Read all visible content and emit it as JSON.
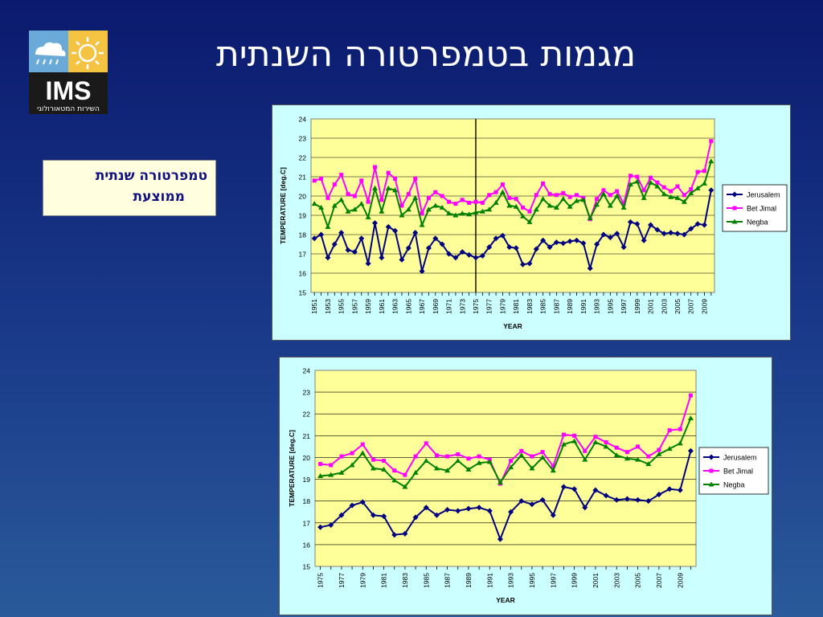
{
  "slide": {
    "title": "מגמות בטמפרטורה השנתית",
    "caption_line1": "טמפרטורה שנתית",
    "caption_line2": "ממוצעת"
  },
  "logo": {
    "text": "IMS",
    "subtext": "השירות המטאורולוגי",
    "icons": [
      "rain-cloud-icon",
      "sun-icon"
    ],
    "colors": {
      "cloud_bg": "#6aaad8",
      "sun_bg": "#f5c342",
      "text_bg": "#1a1a1a"
    }
  },
  "colors": {
    "plot_bg": "#ffff99",
    "panel_bg": "#ccffff",
    "jerusalem": "#000080",
    "bet_jimal": "#ff00ff",
    "negba": "#008000"
  },
  "chart_data": [
    {
      "type": "line",
      "ylabel": "TEMPERATURE   [deg.C]",
      "xlabel": "YEAR",
      "ylim": [
        15,
        24
      ],
      "yticks": [
        15,
        16,
        17,
        18,
        19,
        20,
        21,
        22,
        23,
        24
      ],
      "xticks": [
        1951,
        1953,
        1955,
        1957,
        1959,
        1961,
        1963,
        1965,
        1967,
        1969,
        1971,
        1973,
        1975,
        1977,
        1979,
        1981,
        1983,
        1985,
        1987,
        1989,
        1991,
        1993,
        1995,
        1997,
        1999,
        2001,
        2003,
        2005,
        2007,
        2009
      ],
      "x": [
        1951,
        1952,
        1953,
        1954,
        1955,
        1956,
        1957,
        1958,
        1959,
        1960,
        1961,
        1962,
        1963,
        1964,
        1965,
        1966,
        1967,
        1968,
        1969,
        1970,
        1971,
        1972,
        1973,
        1974,
        1975,
        1976,
        1977,
        1978,
        1979,
        1980,
        1981,
        1982,
        1983,
        1984,
        1985,
        1986,
        1987,
        1988,
        1989,
        1990,
        1991,
        1992,
        1993,
        1994,
        1995,
        1996,
        1997,
        1998,
        1999,
        2000,
        2001,
        2002,
        2003,
        2004,
        2005,
        2006,
        2007,
        2008,
        2009,
        2010
      ],
      "vline": 1975,
      "grid": true,
      "legend": "right",
      "series": [
        {
          "name": "Jerusalem",
          "color": "#000080",
          "marker": "diamond",
          "values": [
            17.8,
            18.0,
            16.8,
            17.5,
            18.1,
            17.2,
            17.1,
            17.8,
            16.5,
            18.6,
            16.8,
            18.4,
            18.2,
            16.7,
            17.3,
            18.1,
            16.1,
            17.3,
            17.8,
            17.5,
            17.0,
            16.8,
            17.1,
            16.95,
            16.8,
            16.9,
            17.35,
            17.8,
            17.95,
            17.35,
            17.3,
            16.45,
            16.5,
            17.25,
            17.7,
            17.35,
            17.6,
            17.55,
            17.65,
            17.7,
            17.55,
            16.25,
            17.5,
            18.0,
            17.85,
            18.05,
            17.35,
            18.65,
            18.55,
            17.7,
            18.5,
            18.25,
            18.05,
            18.1,
            18.05,
            18.0,
            18.3,
            18.55,
            18.5,
            20.3
          ]
        },
        {
          "name": "Bet Jimal",
          "color": "#ff00ff",
          "marker": "square",
          "values": [
            20.8,
            20.9,
            19.9,
            20.6,
            21.1,
            20.1,
            20.0,
            20.8,
            19.7,
            21.5,
            19.8,
            21.2,
            20.9,
            19.5,
            20.1,
            20.9,
            19.1,
            19.9,
            20.2,
            20.0,
            19.7,
            19.6,
            19.8,
            19.65,
            19.7,
            19.65,
            20.05,
            20.2,
            20.6,
            19.9,
            19.85,
            19.4,
            19.2,
            20.05,
            20.65,
            20.1,
            20.05,
            20.15,
            19.95,
            20.05,
            19.9,
            18.8,
            19.85,
            20.3,
            20.05,
            20.25,
            19.6,
            21.05,
            21.0,
            20.3,
            20.95,
            20.7,
            20.45,
            20.25,
            20.5,
            20.05,
            20.35,
            21.25,
            21.3,
            22.85
          ]
        },
        {
          "name": "Negba",
          "color": "#008000",
          "marker": "triangle",
          "values": [
            19.6,
            19.4,
            18.4,
            19.5,
            19.8,
            19.2,
            19.3,
            19.6,
            18.9,
            20.4,
            19.2,
            20.4,
            20.3,
            19.0,
            19.3,
            19.9,
            18.5,
            19.3,
            19.5,
            19.4,
            19.1,
            19.0,
            19.1,
            19.05,
            19.15,
            19.2,
            19.3,
            19.65,
            20.2,
            19.5,
            19.45,
            18.95,
            18.65,
            19.3,
            19.85,
            19.5,
            19.4,
            19.85,
            19.45,
            19.75,
            19.8,
            18.85,
            19.55,
            20.1,
            19.5,
            20.0,
            19.4,
            20.6,
            20.75,
            19.9,
            20.7,
            20.5,
            20.1,
            19.95,
            19.9,
            19.7,
            20.15,
            20.4,
            20.65,
            21.8
          ]
        }
      ]
    },
    {
      "type": "line",
      "ylabel": "TEMPERATURE   [deg.C]",
      "xlabel": "YEAR",
      "ylim": [
        15,
        24
      ],
      "yticks": [
        15,
        16,
        17,
        18,
        19,
        20,
        21,
        22,
        23,
        24
      ],
      "xticks": [
        1975,
        1977,
        1979,
        1981,
        1983,
        1985,
        1987,
        1989,
        1991,
        1993,
        1995,
        1997,
        1999,
        2001,
        2003,
        2005,
        2007,
        2009
      ],
      "x": [
        1975,
        1976,
        1977,
        1978,
        1979,
        1980,
        1981,
        1982,
        1983,
        1984,
        1985,
        1986,
        1987,
        1988,
        1989,
        1990,
        1991,
        1992,
        1993,
        1994,
        1995,
        1996,
        1997,
        1998,
        1999,
        2000,
        2001,
        2002,
        2003,
        2004,
        2005,
        2006,
        2007,
        2008,
        2009,
        2010
      ],
      "grid": true,
      "legend": "right",
      "series": [
        {
          "name": "Jerusalem",
          "color": "#000080",
          "marker": "diamond",
          "values": [
            16.8,
            16.9,
            17.35,
            17.8,
            17.95,
            17.35,
            17.3,
            16.45,
            16.5,
            17.25,
            17.7,
            17.35,
            17.6,
            17.55,
            17.65,
            17.7,
            17.55,
            16.25,
            17.5,
            18.0,
            17.85,
            18.05,
            17.35,
            18.65,
            18.55,
            17.7,
            18.5,
            18.25,
            18.05,
            18.1,
            18.05,
            18.0,
            18.3,
            18.55,
            18.5,
            20.3
          ]
        },
        {
          "name": "Bet Jimal",
          "color": "#ff00ff",
          "marker": "square",
          "values": [
            19.7,
            19.65,
            20.05,
            20.2,
            20.6,
            19.9,
            19.85,
            19.4,
            19.2,
            20.05,
            20.65,
            20.1,
            20.05,
            20.15,
            19.95,
            20.05,
            19.9,
            18.8,
            19.85,
            20.3,
            20.05,
            20.25,
            19.6,
            21.05,
            21.0,
            20.3,
            20.95,
            20.7,
            20.45,
            20.25,
            20.5,
            20.05,
            20.35,
            21.25,
            21.3,
            22.85
          ]
        },
        {
          "name": "Negba",
          "color": "#008000",
          "marker": "triangle",
          "values": [
            19.15,
            19.2,
            19.3,
            19.65,
            20.2,
            19.5,
            19.45,
            18.95,
            18.65,
            19.3,
            19.85,
            19.5,
            19.4,
            19.85,
            19.45,
            19.75,
            19.8,
            18.85,
            19.55,
            20.1,
            19.5,
            20.0,
            19.4,
            20.6,
            20.75,
            19.9,
            20.7,
            20.5,
            20.1,
            19.95,
            19.9,
            19.7,
            20.15,
            20.4,
            20.65,
            21.8
          ]
        }
      ]
    }
  ]
}
